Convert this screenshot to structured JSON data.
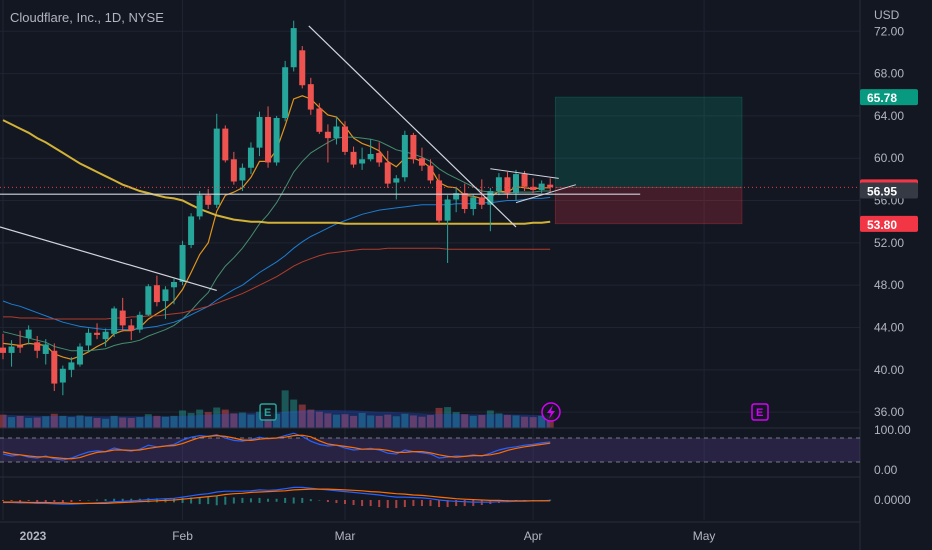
{
  "header": {
    "title": "Cloudflare, Inc., 1D, NYSE",
    "currency": "USD"
  },
  "colors": {
    "up": "#26a69a",
    "down": "#ef5350",
    "background": "#131722",
    "grid": "#1f2433",
    "axis_text": "#b2b5be"
  },
  "chart_data": {
    "type": "candlestick",
    "title": "Cloudflare, Inc., 1D, NYSE",
    "ylabel": "USD",
    "ylim": [
      34.5,
      74.2
    ],
    "y_ticks": [
      "72.00",
      "68.00",
      "64.00",
      "60.00",
      "56.00",
      "52.00",
      "48.00",
      "44.00",
      "40.00",
      "36.00"
    ],
    "x_ticks": [
      {
        "label": "2023",
        "index": 0
      },
      {
        "label": "Feb",
        "index": 21
      },
      {
        "label": "Mar",
        "index": 40
      },
      {
        "label": "Apr",
        "index": 62
      },
      {
        "label": "May",
        "index": 82
      }
    ],
    "series": [
      {
        "type": "ohlc",
        "values": [
          [
            42.1,
            43.4,
            41.0,
            41.6
          ],
          [
            41.6,
            42.8,
            40.3,
            42.2
          ],
          [
            42.3,
            43.7,
            41.6,
            42.1
          ],
          [
            43.0,
            44.2,
            42.4,
            43.8
          ],
          [
            42.6,
            43.2,
            41.1,
            41.8
          ],
          [
            41.5,
            42.9,
            40.5,
            42.4
          ],
          [
            41.8,
            42.5,
            38.0,
            38.7
          ],
          [
            38.8,
            40.4,
            37.6,
            40.1
          ],
          [
            40.0,
            41.2,
            39.3,
            40.7
          ],
          [
            40.5,
            42.5,
            40.3,
            42.2
          ],
          [
            42.3,
            43.9,
            41.7,
            43.5
          ],
          [
            43.5,
            44.4,
            42.9,
            43.3
          ],
          [
            42.9,
            43.9,
            42.2,
            43.6
          ],
          [
            43.4,
            46.0,
            43.1,
            45.8
          ],
          [
            45.6,
            46.8,
            43.6,
            44.2
          ],
          [
            44.2,
            44.8,
            42.8,
            43.7
          ],
          [
            43.8,
            45.5,
            43.5,
            45.2
          ],
          [
            45.2,
            48.1,
            45.1,
            47.9
          ],
          [
            48.0,
            48.9,
            46.0,
            46.4
          ],
          [
            46.5,
            47.9,
            44.8,
            47.6
          ],
          [
            47.8,
            48.6,
            46.2,
            48.3
          ],
          [
            48.3,
            52.2,
            48.0,
            51.8
          ],
          [
            51.8,
            54.8,
            51.5,
            54.5
          ],
          [
            54.5,
            56.9,
            54.2,
            56.5
          ],
          [
            56.5,
            57.1,
            55.2,
            55.6
          ],
          [
            55.6,
            64.2,
            55.3,
            62.8
          ],
          [
            62.8,
            63.1,
            59.6,
            59.8
          ],
          [
            59.9,
            60.6,
            57.5,
            57.8
          ],
          [
            57.9,
            59.5,
            56.9,
            59.1
          ],
          [
            59.1,
            61.5,
            58.5,
            61.0
          ],
          [
            61.0,
            64.4,
            60.2,
            63.9
          ],
          [
            63.9,
            64.9,
            59.1,
            59.6
          ],
          [
            59.6,
            64.0,
            59.3,
            63.8
          ],
          [
            63.8,
            69.2,
            63.5,
            68.6
          ],
          [
            68.6,
            73.0,
            68.2,
            72.3
          ],
          [
            70.2,
            70.6,
            66.6,
            66.9
          ],
          [
            67.0,
            67.6,
            64.1,
            64.6
          ],
          [
            64.7,
            65.2,
            62.3,
            62.5
          ],
          [
            62.5,
            63.2,
            59.6,
            61.9
          ],
          [
            61.9,
            63.9,
            61.3,
            63.0
          ],
          [
            63.0,
            63.5,
            60.3,
            60.6
          ],
          [
            60.6,
            61.1,
            59.1,
            59.4
          ],
          [
            59.5,
            61.0,
            58.9,
            59.9
          ],
          [
            59.9,
            61.8,
            59.7,
            60.4
          ],
          [
            60.5,
            61.5,
            59.2,
            59.6
          ],
          [
            59.6,
            60.7,
            57.2,
            57.6
          ],
          [
            57.7,
            58.4,
            56.1,
            58.1
          ],
          [
            58.2,
            62.6,
            57.8,
            62.2
          ],
          [
            62.2,
            62.4,
            59.5,
            59.9
          ],
          [
            60.0,
            61.0,
            58.8,
            59.3
          ],
          [
            59.3,
            59.9,
            57.6,
            57.9
          ],
          [
            57.9,
            58.5,
            53.8,
            54.1
          ],
          [
            54.1,
            56.5,
            50.1,
            56.1
          ],
          [
            56.1,
            57.3,
            54.9,
            56.7
          ],
          [
            56.7,
            57.6,
            54.8,
            55.2
          ],
          [
            55.2,
            56.6,
            54.6,
            56.3
          ],
          [
            56.3,
            58.0,
            55.2,
            55.6
          ],
          [
            55.6,
            57.2,
            53.1,
            56.9
          ],
          [
            56.9,
            58.6,
            56.5,
            58.2
          ],
          [
            58.2,
            58.7,
            56.2,
            56.7
          ],
          [
            56.7,
            58.9,
            56.0,
            58.5
          ],
          [
            58.5,
            58.8,
            56.9,
            57.3
          ],
          [
            57.3,
            58.1,
            56.7,
            57.0
          ],
          [
            57.0,
            57.9,
            56.7,
            57.6
          ],
          [
            57.5,
            58.1,
            56.8,
            57.25
          ]
        ]
      },
      {
        "type": "line",
        "values": [
          42.5,
          42.4,
          42.3,
          42.5,
          42.4,
          42.3,
          41.5,
          41.2,
          41.0,
          41.3,
          41.7,
          42.2,
          42.6,
          43.4,
          43.7,
          43.7,
          44.0,
          44.8,
          45.3,
          45.8,
          46.5,
          47.6,
          49.2,
          50.9,
          52.0,
          55.0,
          56.5,
          56.8,
          57.2,
          58.2,
          59.7,
          59.7,
          60.8,
          63.1,
          65.6,
          65.9,
          65.6,
          64.8,
          64.1,
          63.9,
          63.0,
          61.9,
          61.4,
          61.1,
          60.7,
          59.7,
          59.2,
          60.0,
          60.0,
          59.7,
          59.1,
          57.7,
          57.3,
          57.2,
          56.5,
          56.4,
          56.2,
          56.3,
          56.9,
          56.8,
          57.3,
          57.2,
          57.1,
          57.2,
          57.2
        ]
      },
      {
        "type": "line",
        "values": [
          43.6,
          43.4,
          43.2,
          43.0,
          42.8,
          42.6,
          42.2,
          42.0,
          41.8,
          41.8,
          41.8,
          41.9,
          42.0,
          42.3,
          42.5,
          42.6,
          42.8,
          43.2,
          43.5,
          43.8,
          44.2,
          44.8,
          45.6,
          46.5,
          47.3,
          48.7,
          49.8,
          50.6,
          51.5,
          52.6,
          53.8,
          54.7,
          55.8,
          57.2,
          58.7,
          59.7,
          60.5,
          61.0,
          61.5,
          61.9,
          62.0,
          62.0,
          61.9,
          61.8,
          61.6,
          61.2,
          60.8,
          60.6,
          60.4,
          60.1,
          59.7,
          59.0,
          58.5,
          58.1,
          57.7,
          57.3,
          56.9,
          56.8,
          56.8,
          56.7,
          56.8,
          56.8,
          56.8,
          56.9,
          56.9
        ]
      },
      {
        "type": "line",
        "values": [
          46.5,
          46.2,
          46.0,
          45.7,
          45.4,
          45.1,
          44.8,
          44.5,
          44.3,
          44.1,
          44.0,
          43.9,
          43.8,
          43.8,
          43.8,
          43.8,
          43.9,
          44.0,
          44.1,
          44.3,
          44.5,
          44.8,
          45.2,
          45.6,
          46.0,
          46.6,
          47.1,
          47.6,
          48.0,
          48.6,
          49.2,
          49.7,
          50.2,
          50.8,
          51.5,
          52.1,
          52.6,
          53.0,
          53.4,
          53.8,
          54.1,
          54.4,
          54.7,
          54.9,
          55.1,
          55.2,
          55.3,
          55.4,
          55.5,
          55.6,
          55.6,
          55.6,
          55.6,
          55.7,
          55.7,
          55.7,
          55.8,
          55.8,
          55.9,
          56.0,
          56.0,
          56.1,
          56.2,
          56.2,
          56.3
        ]
      },
      {
        "type": "line",
        "values": [
          63.6,
          63.2,
          62.8,
          62.4,
          61.9,
          61.5,
          61.0,
          60.5,
          60.0,
          59.5,
          59.1,
          58.7,
          58.3,
          57.9,
          57.5,
          57.2,
          56.9,
          56.7,
          56.5,
          56.3,
          56.2,
          56.0,
          55.6,
          55.2,
          54.9,
          54.6,
          54.4,
          54.2,
          54.1,
          54.0,
          54.0,
          53.9,
          53.9,
          53.9,
          53.9,
          53.9,
          53.9,
          53.9,
          53.9,
          53.9,
          53.8,
          53.8,
          53.8,
          53.8,
          53.8,
          53.8,
          53.8,
          53.8,
          53.8,
          53.8,
          53.8,
          53.8,
          53.8,
          53.8,
          53.8,
          53.8,
          53.8,
          53.8,
          53.8,
          53.8,
          53.8,
          53.8,
          53.9,
          53.9,
          54.0
        ]
      },
      {
        "type": "line",
        "values": [
          45.0,
          45.0,
          44.9,
          44.9,
          44.9,
          44.8,
          44.8,
          44.8,
          44.8,
          44.8,
          44.8,
          44.8,
          44.8,
          44.9,
          44.9,
          45.0,
          45.0,
          45.1,
          45.1,
          45.2,
          45.3,
          45.4,
          45.6,
          45.8,
          46.0,
          46.3,
          46.6,
          46.9,
          47.2,
          47.6,
          48.0,
          48.4,
          48.8,
          49.3,
          49.8,
          50.2,
          50.5,
          50.8,
          51.0,
          51.1,
          51.2,
          51.3,
          51.4,
          51.4,
          51.4,
          51.5,
          51.5,
          51.5,
          51.5,
          51.5,
          51.5,
          51.5,
          51.4,
          51.4,
          51.4,
          51.4,
          51.4,
          51.4,
          51.4,
          51.4,
          51.4,
          51.4,
          51.4,
          51.4,
          51.4
        ]
      }
    ],
    "volume": [
      3.2,
      2.6,
      2.9,
      2.4,
      2.5,
      2.8,
      3.4,
      2.9,
      2.6,
      3.0,
      2.7,
      2.4,
      2.2,
      2.9,
      2.5,
      2.4,
      2.6,
      3.3,
      2.9,
      2.7,
      2.9,
      4.2,
      3.6,
      4.4,
      3.8,
      4.9,
      4.4,
      3.5,
      3.7,
      3.2,
      3.9,
      3.6,
      3.4,
      9.0,
      6.8,
      5.6,
      4.4,
      3.9,
      3.5,
      3.2,
      3.3,
      2.9,
      3.6,
      3.0,
      2.9,
      3.2,
      2.8,
      3.4,
      3.0,
      2.7,
      3.1,
      4.8,
      5.0,
      3.8,
      3.3,
      2.9,
      3.1,
      4.2,
      3.5,
      3.1,
      3.0,
      2.7,
      2.6,
      2.9,
      3.0
    ],
    "volume_ma": [
      3.1,
      3.1,
      3.0,
      3.0,
      2.9,
      2.9,
      2.9,
      2.9,
      2.9,
      2.9,
      2.9,
      2.8,
      2.8,
      2.8,
      2.8,
      2.8,
      2.8,
      2.8,
      2.8,
      2.8,
      2.8,
      2.9,
      3.0,
      3.1,
      3.2,
      3.3,
      3.4,
      3.5,
      3.5,
      3.6,
      3.6,
      3.7,
      3.7,
      3.9,
      4.1,
      4.2,
      4.3,
      4.3,
      4.3,
      4.3,
      4.2,
      4.2,
      4.1,
      4.0,
      3.9,
      3.9,
      3.8,
      3.7,
      3.6,
      3.5,
      3.4,
      3.4,
      3.4,
      3.4,
      3.3,
      3.3,
      3.3,
      3.3,
      3.3,
      3.3,
      3.2,
      3.2,
      3.1,
      3.1,
      3.0
    ],
    "rsi": {
      "ticks": [
        "100.00",
        "0.00"
      ],
      "k": [
        40,
        35,
        38,
        32,
        30,
        35,
        28,
        25,
        30,
        38,
        45,
        48,
        46,
        55,
        50,
        47,
        52,
        62,
        58,
        60,
        64,
        75,
        82,
        86,
        84,
        88,
        80,
        74,
        72,
        76,
        82,
        78,
        80,
        86,
        92,
        84,
        72,
        64,
        60,
        62,
        55,
        50,
        52,
        54,
        50,
        42,
        40,
        50,
        46,
        43,
        40,
        30,
        32,
        35,
        34,
        38,
        35,
        42,
        50,
        55,
        58,
        62,
        64,
        68,
        70
      ],
      "d": [
        45,
        40,
        38,
        35,
        33,
        33,
        31,
        29,
        28,
        31,
        38,
        44,
        46,
        50,
        50,
        49,
        50,
        54,
        57,
        60,
        61,
        66,
        74,
        81,
        84,
        86,
        84,
        80,
        75,
        74,
        77,
        79,
        80,
        82,
        86,
        87,
        83,
        73,
        65,
        62,
        59,
        56,
        52,
        52,
        52,
        49,
        44,
        44,
        46,
        46,
        43,
        38,
        34,
        32,
        34,
        36,
        36,
        38,
        42,
        49,
        54,
        58,
        61,
        64,
        67
      ]
    },
    "macd": {
      "ticks": [
        "0.0000"
      ],
      "macd": [
        -0.6,
        -0.6,
        -0.7,
        -0.7,
        -0.8,
        -0.8,
        -0.9,
        -1.0,
        -1.0,
        -0.9,
        -0.8,
        -0.7,
        -0.6,
        -0.4,
        -0.3,
        -0.2,
        -0.1,
        0.1,
        0.2,
        0.3,
        0.4,
        0.7,
        1.0,
        1.3,
        1.5,
        1.9,
        2.1,
        2.1,
        2.1,
        2.2,
        2.4,
        2.3,
        2.4,
        2.7,
        3.0,
        3.0,
        2.8,
        2.6,
        2.4,
        2.2,
        2.0,
        1.8,
        1.6,
        1.4,
        1.2,
        0.9,
        0.7,
        0.7,
        0.6,
        0.5,
        0.3,
        0.0,
        -0.2,
        -0.3,
        -0.4,
        -0.5,
        -0.5,
        -0.5,
        -0.4,
        -0.4,
        -0.3,
        -0.3,
        -0.2,
        -0.2,
        -0.1
      ],
      "signal": [
        -0.5,
        -0.5,
        -0.5,
        -0.6,
        -0.6,
        -0.6,
        -0.7,
        -0.7,
        -0.8,
        -0.8,
        -0.8,
        -0.8,
        -0.8,
        -0.7,
        -0.6,
        -0.5,
        -0.4,
        -0.3,
        -0.2,
        -0.1,
        0.0,
        0.2,
        0.4,
        0.6,
        0.8,
        1.0,
        1.3,
        1.5,
        1.6,
        1.8,
        1.9,
        2.0,
        2.1,
        2.2,
        2.4,
        2.5,
        2.6,
        2.6,
        2.6,
        2.5,
        2.4,
        2.3,
        2.2,
        2.0,
        1.9,
        1.7,
        1.5,
        1.4,
        1.2,
        1.1,
        0.9,
        0.7,
        0.5,
        0.3,
        0.2,
        0.1,
        0.0,
        -0.1,
        -0.1,
        -0.2,
        -0.2,
        -0.2,
        -0.2,
        -0.2,
        -0.2
      ]
    },
    "price_labels": [
      {
        "value": "65.78",
        "price": 65.78,
        "color": "#089981"
      },
      {
        "value": "57.25",
        "price": 57.25,
        "color": "#f23645"
      },
      {
        "value": "56.95",
        "price": 56.95,
        "color": "#363a45"
      },
      {
        "value": "53.80",
        "price": 53.8,
        "color": "#f23645"
      }
    ],
    "position": {
      "entry": 57.25,
      "target": 65.78,
      "stop": 53.8
    },
    "events": [
      "E",
      "E"
    ]
  }
}
